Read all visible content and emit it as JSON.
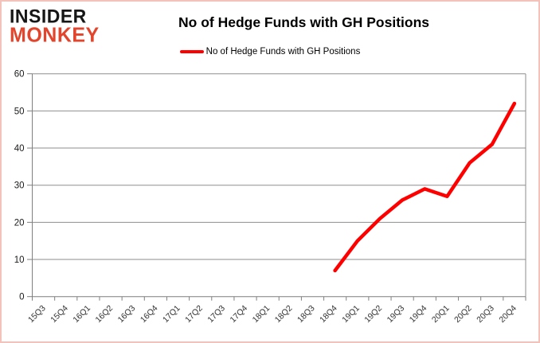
{
  "logo": {
    "line1": "INSIDER",
    "line2": "MONKEY",
    "accent_color": "#E2452C"
  },
  "header": {
    "title": "No of Hedge Funds with GH Positions"
  },
  "legend": {
    "label": "No of Hedge Funds with GH Positions",
    "swatch_color": "#FF0000"
  },
  "chart_data": {
    "type": "line",
    "title": "No of Hedge Funds with GH Positions",
    "categories": [
      "15Q3",
      "15Q4",
      "16Q1",
      "16Q2",
      "16Q3",
      "16Q4",
      "17Q1",
      "17Q2",
      "17Q3",
      "17Q4",
      "18Q1",
      "18Q2",
      "18Q3",
      "18Q4",
      "19Q1",
      "19Q2",
      "19Q3",
      "19Q4",
      "20Q1",
      "20Q2",
      "20Q3",
      "20Q4"
    ],
    "series": [
      {
        "name": "No of Hedge Funds with GH Positions",
        "color": "#FF0000",
        "values": [
          null,
          null,
          null,
          null,
          null,
          null,
          null,
          null,
          null,
          null,
          null,
          null,
          null,
          7,
          15,
          21,
          26,
          29,
          27,
          36,
          41,
          52
        ]
      }
    ],
    "xlabel": "",
    "ylabel": "",
    "ylim": [
      0,
      60
    ],
    "ytick_interval": 10,
    "ytick_labels": [
      "0",
      "10",
      "20",
      "30",
      "40",
      "50",
      "60"
    ],
    "grid": true,
    "legend_position": "top"
  },
  "colors": {
    "line": "#FF0000",
    "gridline": "#8E8E8E",
    "axis": "#7F7F7F",
    "page_border": "#F2C2BB",
    "axis_label_text": "#333333"
  }
}
